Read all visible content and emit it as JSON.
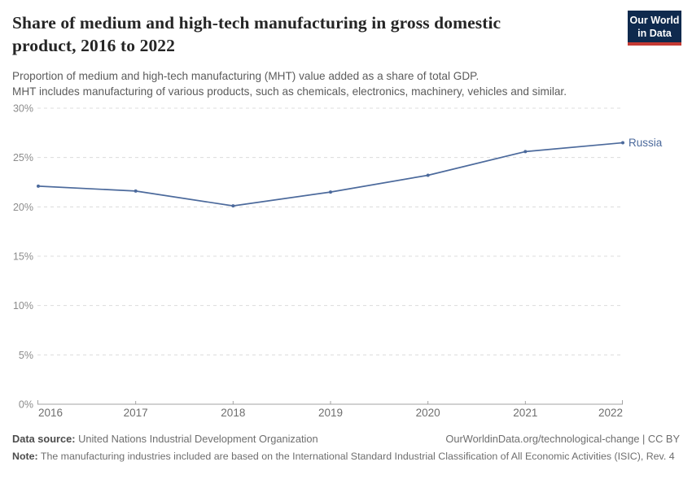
{
  "header": {
    "title_lines": [
      "Share of medium and high-tech manufacturing in gross domestic",
      "product, 2016 to 2022"
    ],
    "subtitle_lines": [
      "Proportion of medium and high-tech manufacturing (MHT) value added as a share of total GDP.",
      "MHT includes manufacturing of various products, such as chemicals, electronics, machinery, vehicles and similar."
    ],
    "logo": {
      "line1": "Our World",
      "line2": "in Data",
      "bg_color": "#0f2a4e",
      "accent_color": "#c53a33"
    }
  },
  "chart_data": {
    "type": "line",
    "title": "Share of medium and high-tech manufacturing in gross domestic product, 2016 to 2022",
    "x": [
      2016,
      2017,
      2018,
      2019,
      2020,
      2021,
      2022
    ],
    "x_labels": [
      "2016",
      "2017",
      "2018",
      "2019",
      "2020",
      "2021",
      "2022"
    ],
    "series": [
      {
        "name": "Russia",
        "values": [
          22.1,
          21.6,
          20.1,
          21.5,
          23.2,
          25.6,
          26.5
        ],
        "color": "#4c6a9c"
      }
    ],
    "xlabel": "",
    "ylabel": "",
    "ylim": [
      0,
      30
    ],
    "yticks": [
      {
        "value": 0,
        "label": "0%"
      },
      {
        "value": 5,
        "label": "5%"
      },
      {
        "value": 10,
        "label": "10%"
      },
      {
        "value": 15,
        "label": "15%"
      },
      {
        "value": 20,
        "label": "20%"
      },
      {
        "value": 25,
        "label": "25%"
      },
      {
        "value": 30,
        "label": "30%"
      }
    ],
    "grid": "horizontal-dashed",
    "legend": "end-of-line-label"
  },
  "footer": {
    "datasource_label": "Data source:",
    "datasource_value": " United Nations Industrial Development Organization",
    "license": "OurWorldinData.org/technological-change | CC BY",
    "note_label": "Note:",
    "note_value": " The manufacturing industries included are based on the International Standard Industrial Classification of All Economic Activities (ISIC), Rev. 4"
  }
}
